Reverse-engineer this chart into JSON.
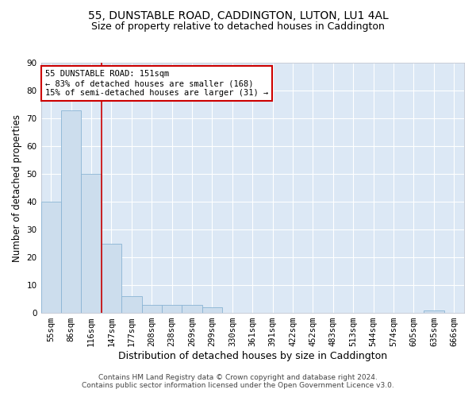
{
  "title1": "55, DUNSTABLE ROAD, CADDINGTON, LUTON, LU1 4AL",
  "title2": "Size of property relative to detached houses in Caddington",
  "xlabel": "Distribution of detached houses by size in Caddington",
  "ylabel": "Number of detached properties",
  "bin_labels": [
    "55sqm",
    "86sqm",
    "116sqm",
    "147sqm",
    "177sqm",
    "208sqm",
    "238sqm",
    "269sqm",
    "299sqm",
    "330sqm",
    "361sqm",
    "391sqm",
    "422sqm",
    "452sqm",
    "483sqm",
    "513sqm",
    "544sqm",
    "574sqm",
    "605sqm",
    "635sqm",
    "666sqm"
  ],
  "bar_heights": [
    40,
    73,
    50,
    25,
    6,
    3,
    3,
    3,
    2,
    0,
    0,
    0,
    0,
    0,
    0,
    0,
    0,
    0,
    0,
    1,
    0
  ],
  "bar_color": "#ccdded",
  "bar_edge_color": "#8ab4d4",
  "bg_color": "#dce8f5",
  "grid_color": "#ffffff",
  "red_line_bin": 3,
  "annotation_text": "55 DUNSTABLE ROAD: 151sqm\n← 83% of detached houses are smaller (168)\n15% of semi-detached houses are larger (31) →",
  "annotation_box_color": "#ffffff",
  "annotation_box_edge": "#cc0000",
  "ylim": [
    0,
    90
  ],
  "yticks": [
    0,
    10,
    20,
    30,
    40,
    50,
    60,
    70,
    80,
    90
  ],
  "footer": "Contains HM Land Registry data © Crown copyright and database right 2024.\nContains public sector information licensed under the Open Government Licence v3.0.",
  "title_fontsize": 10,
  "subtitle_fontsize": 9,
  "xlabel_fontsize": 9,
  "ylabel_fontsize": 8.5,
  "tick_fontsize": 7.5,
  "annotation_fontsize": 7.5,
  "footer_fontsize": 6.5
}
